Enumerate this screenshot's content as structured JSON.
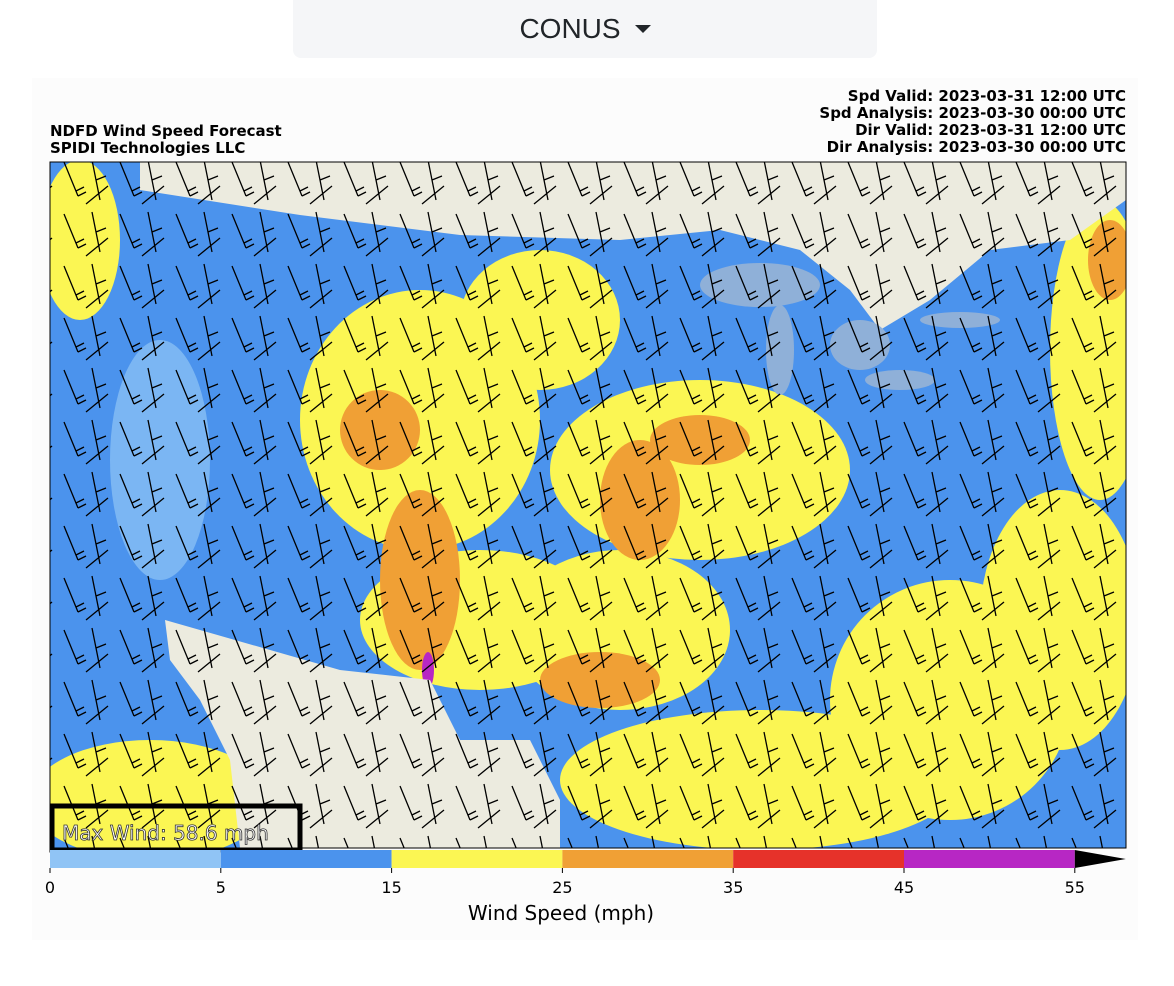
{
  "dropdown": {
    "label": "CONUS"
  },
  "map": {
    "title_lines": [
      "NDFD Wind Speed Forecast",
      "SPIDI Technologies LLC"
    ],
    "valid_lines": [
      "Spd Valid: 2023-03-31 12:00 UTC",
      "Spd Analysis: 2023-03-30 00:00 UTC",
      "Dir Valid: 2023-03-31 12:00 UTC",
      "Dir Analysis: 2023-03-30 00:00 UTC"
    ],
    "max_wind": "Max Wind: 58.6 mph",
    "colorbar": {
      "label": "Wind Speed (mph)",
      "ticks": [
        0,
        5,
        15,
        25,
        35,
        45,
        55
      ],
      "colors": [
        "#90c4f5",
        "#4b93ed",
        "#fbf653",
        "#f0a035",
        "#e6322a",
        "#b727c4"
      ],
      "extend_color": "#000000"
    }
  }
}
